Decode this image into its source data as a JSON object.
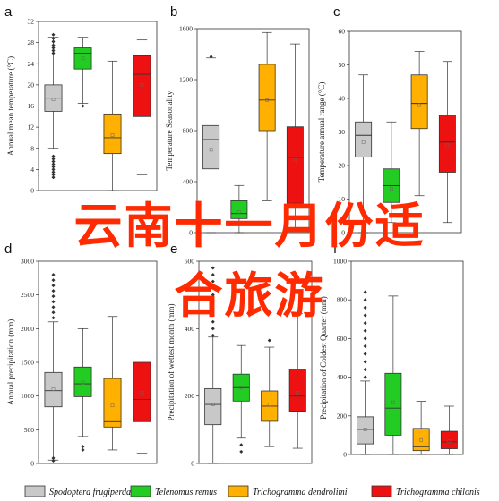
{
  "overlay_text": {
    "line1": "云南十一月份适",
    "line2": "合旅游"
  },
  "legend": [
    {
      "name": "Spodoptera frugiperda",
      "color": "#c8c8c8"
    },
    {
      "name": "Telenomus remus",
      "color": "#22cc22"
    },
    {
      "name": "Trichogramma dendrolimi",
      "color": "#ffb000"
    },
    {
      "name": "Trichogramma chilonis",
      "color": "#ee1111"
    }
  ],
  "chart_data": [
    {
      "type": "box",
      "letter": "a",
      "ylabel": "Annual mean temperature (°C)",
      "ylim": [
        0,
        32
      ],
      "yticks": [
        0,
        4,
        8,
        12,
        16,
        20,
        24,
        28,
        32
      ],
      "series": [
        {
          "name": "Spodoptera frugiperda",
          "min": 8,
          "q1": 15,
          "median": 17.5,
          "q3": 20,
          "max": 29,
          "mean": 17.3,
          "outliers": [
            29.5,
            28.8,
            28.2,
            27.5,
            27,
            26.5,
            26,
            6.5,
            6,
            5.5,
            5,
            4.5,
            4,
            3.5,
            3,
            2.5
          ]
        },
        {
          "name": "Telenomus remus",
          "min": 16.5,
          "q1": 23,
          "median": 26,
          "q3": 27,
          "max": 29,
          "mean": 25,
          "outliers": [
            16
          ]
        },
        {
          "name": "Trichogramma dendrolimi",
          "min": 0,
          "q1": 7,
          "median": 10,
          "q3": 14.5,
          "max": 24.5,
          "mean": 10.5,
          "outliers": []
        },
        {
          "name": "Trichogramma chilonis",
          "min": 3,
          "q1": 14,
          "median": 22,
          "q3": 25.5,
          "max": 28.5,
          "mean": 20,
          "outliers": []
        }
      ]
    },
    {
      "type": "box",
      "letter": "b",
      "ylabel": "Temperature Seasonality",
      "ylim": [
        0,
        1600
      ],
      "yticks": [
        0,
        400,
        800,
        1200,
        1600
      ],
      "series": [
        {
          "name": "Spodoptera frugiperda",
          "min": 0,
          "q1": 500,
          "median": 730,
          "q3": 840,
          "max": 1370,
          "mean": 650,
          "outliers": [
            1380
          ]
        },
        {
          "name": "Telenomus remus",
          "min": 0,
          "q1": 110,
          "median": 150,
          "q3": 250,
          "max": 370,
          "mean": 160,
          "outliers": []
        },
        {
          "name": "Trichogramma dendrolimi",
          "min": 250,
          "q1": 800,
          "median": 1040,
          "q3": 1320,
          "max": 1570,
          "mean": 1040,
          "outliers": []
        },
        {
          "name": "Trichogramma chilonis",
          "min": 20,
          "q1": 230,
          "median": 590,
          "q3": 830,
          "max": 1480,
          "mean": 570,
          "outliers": []
        }
      ]
    },
    {
      "type": "box",
      "letter": "c",
      "ylabel": "Temperature annual range (°C)",
      "ylim": [
        0,
        60
      ],
      "yticks": [
        0,
        10,
        20,
        30,
        40,
        50,
        60
      ],
      "series": [
        {
          "name": "Spodoptera frugiperda",
          "min": 0,
          "q1": 22.5,
          "median": 29,
          "q3": 33,
          "max": 47,
          "mean": 27,
          "outliers": []
        },
        {
          "name": "Telenomus remus",
          "min": 3,
          "q1": 9,
          "median": 14,
          "q3": 19,
          "max": 33,
          "mean": 13,
          "outliers": []
        },
        {
          "name": "Trichogramma dendrolimi",
          "min": 11,
          "q1": 31,
          "median": 38.5,
          "q3": 47,
          "max": 54,
          "mean": 38,
          "outliers": []
        },
        {
          "name": "Trichogramma chilonis",
          "min": 3,
          "q1": 18,
          "median": 27,
          "q3": 35,
          "max": 51,
          "mean": 26,
          "outliers": []
        }
      ]
    },
    {
      "type": "box",
      "letter": "d",
      "ylabel": "Annual precipitation (mm)",
      "ylim": [
        0,
        3000
      ],
      "yticks": [
        0,
        500,
        1000,
        1500,
        2000,
        2500,
        3000
      ],
      "series": [
        {
          "name": "Spodoptera frugiperda",
          "min": 50,
          "q1": 840,
          "median": 1080,
          "q3": 1350,
          "max": 2100,
          "mean": 1100,
          "outliers": [
            2800,
            2720,
            2640,
            2560,
            2480,
            2400,
            2320,
            2240,
            2160,
            80,
            40
          ]
        },
        {
          "name": "Telenomus remus",
          "min": 400,
          "q1": 990,
          "median": 1180,
          "q3": 1430,
          "max": 2000,
          "mean": 1200,
          "outliers": [
            250,
            200
          ]
        },
        {
          "name": "Trichogramma dendrolimi",
          "min": 200,
          "q1": 540,
          "median": 620,
          "q3": 1260,
          "max": 2180,
          "mean": 860,
          "outliers": []
        },
        {
          "name": "Trichogramma chilonis",
          "min": 150,
          "q1": 620,
          "median": 950,
          "q3": 1500,
          "max": 2660,
          "mean": 1050,
          "outliers": []
        }
      ]
    },
    {
      "type": "box",
      "letter": "e",
      "ylabel": "Precipitation of wettest month (mm)",
      "ylim": [
        0,
        600
      ],
      "yticks": [
        0,
        200,
        400,
        600
      ],
      "series": [
        {
          "name": "Spodoptera frugiperda",
          "min": 0,
          "q1": 115,
          "median": 175,
          "q3": 222,
          "max": 375,
          "mean": 175,
          "outliers": [
            580,
            560,
            540,
            520,
            500,
            480,
            460,
            440,
            420,
            400,
            380
          ]
        },
        {
          "name": "Telenomus remus",
          "min": 75,
          "q1": 185,
          "median": 225,
          "q3": 265,
          "max": 350,
          "mean": 225,
          "outliers": [
            55,
            35
          ]
        },
        {
          "name": "Trichogramma dendrolimi",
          "min": 50,
          "q1": 125,
          "median": 170,
          "q3": 215,
          "max": 345,
          "mean": 175,
          "outliers": [
            365
          ]
        },
        {
          "name": "Trichogramma chilonis",
          "min": 45,
          "q1": 155,
          "median": 200,
          "q3": 280,
          "max": 445,
          "mean": 210,
          "outliers": []
        }
      ]
    },
    {
      "type": "box",
      "letter": "f",
      "ylabel": "Precipitation of Coldest Quarter (mm)",
      "ylim": [
        0,
        1000
      ],
      "yticks": [
        0,
        200,
        400,
        600,
        800,
        1000
      ],
      "series": [
        {
          "name": "Spodoptera frugiperda",
          "min": 0,
          "q1": 55,
          "median": 130,
          "q3": 195,
          "max": 380,
          "mean": 130,
          "outliers": [
            840,
            800,
            760,
            720,
            680,
            640,
            600,
            560,
            520,
            480,
            440,
            400
          ]
        },
        {
          "name": "Telenomus remus",
          "min": 0,
          "q1": 100,
          "median": 240,
          "q3": 420,
          "max": 820,
          "mean": 270,
          "outliers": []
        },
        {
          "name": "Trichogramma dendrolimi",
          "min": 0,
          "q1": 20,
          "median": 40,
          "q3": 135,
          "max": 275,
          "mean": 75,
          "outliers": []
        },
        {
          "name": "Trichogramma chilonis",
          "min": 0,
          "q1": 30,
          "median": 65,
          "q3": 120,
          "max": 250,
          "mean": 70,
          "outliers": []
        }
      ]
    }
  ]
}
